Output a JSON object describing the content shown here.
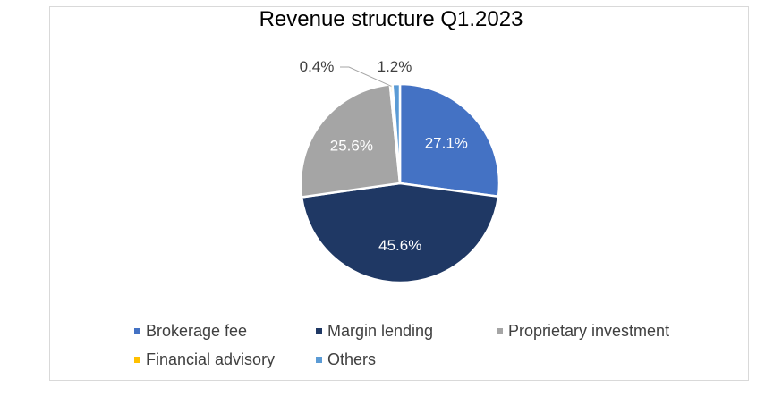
{
  "chart_data": {
    "type": "pie",
    "title": "Revenue structure Q1.2023",
    "categories": [
      "Brokerage fee",
      "Margin lending",
      "Proprietary investment",
      "Financial advisory",
      "Others"
    ],
    "values": [
      27.1,
      45.6,
      25.6,
      0.4,
      1.2
    ],
    "labels": [
      "27.1%",
      "45.6%",
      "25.6%",
      "0.4%",
      "1.2%"
    ],
    "colors": [
      "#4472c4",
      "#1f3864",
      "#a5a5a5",
      "#ffc000",
      "#5b9bd5"
    ],
    "legend_position": "bottom"
  },
  "legend": [
    {
      "label": "Brokerage fee",
      "color": "#4472c4"
    },
    {
      "label": "Margin lending",
      "color": "#1f3864"
    },
    {
      "label": "Proprietary investment",
      "color": "#a5a5a5"
    },
    {
      "label": "Financial advisory",
      "color": "#ffc000"
    },
    {
      "label": "Others",
      "color": "#5b9bd5"
    }
  ]
}
